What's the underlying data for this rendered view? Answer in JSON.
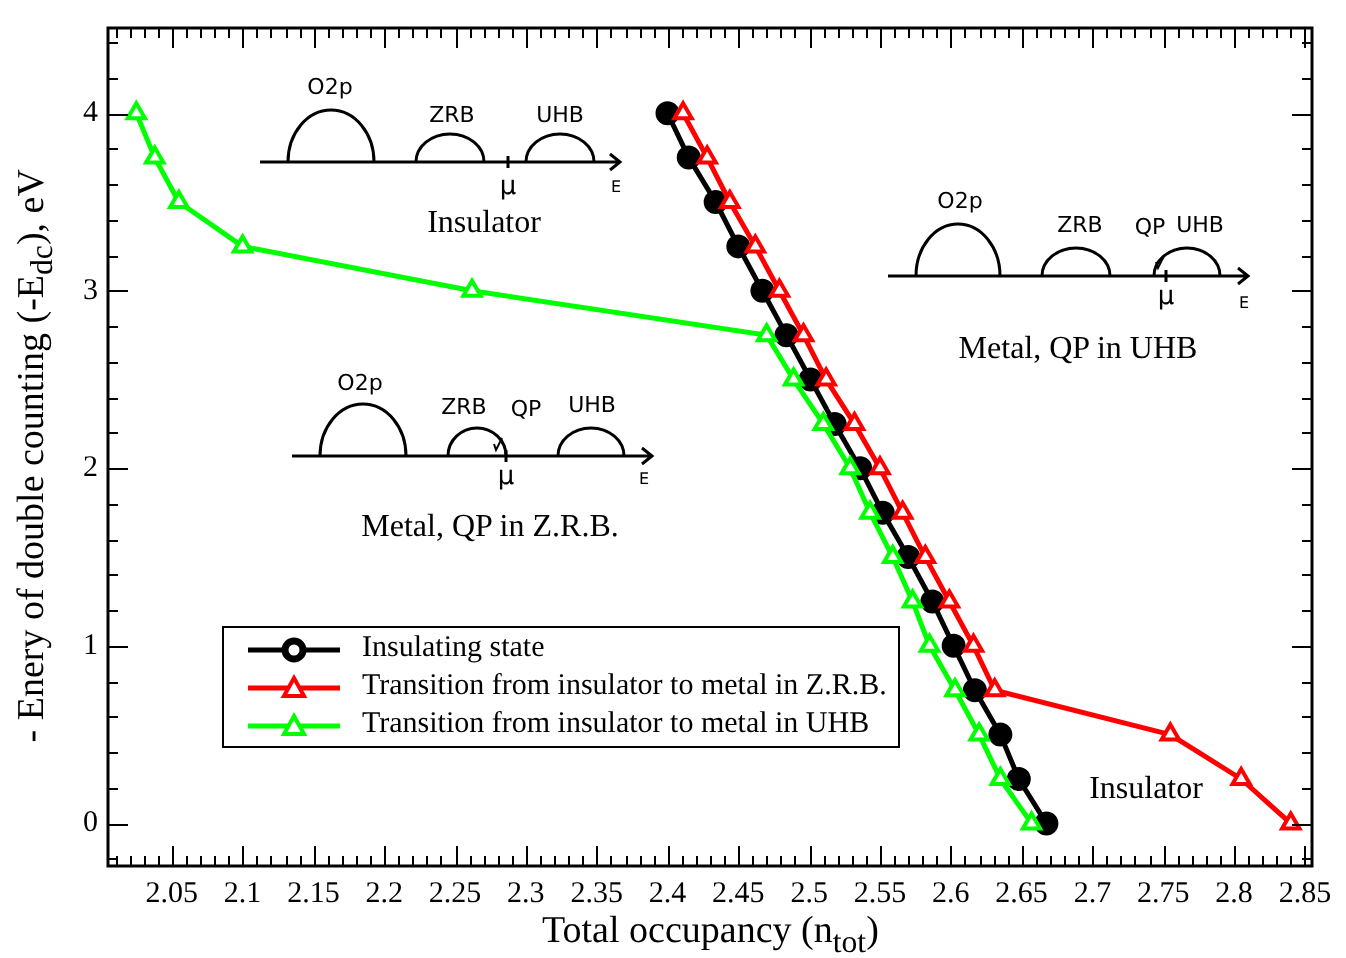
{
  "chart_data": {
    "type": "line",
    "xlabel": "Total occupancy (n$_{tot}$)",
    "ylabel": "- Enery of double counting (-E$_{dc}$), eV",
    "annotations": [
      "O2p",
      "ZRB",
      "UHB",
      "μ",
      "E",
      "Insulator",
      "O2p",
      "ZRB",
      "QP",
      "UHB",
      "μ",
      "E",
      "Metal, QP in UHB",
      "O2p",
      "ZRB",
      "QP",
      "UHB",
      "μ",
      "E",
      "Metal, QP in Z.R.B.",
      "Insulator"
    ],
    "xlim": [
      2.005,
      2.855
    ],
    "ylim": [
      -0.24,
      4.48
    ],
    "xticks": [
      {
        "value": 2.01,
        "label": null
      },
      {
        "value": 2.02,
        "label": null
      },
      {
        "value": 2.03,
        "label": null
      },
      {
        "value": 2.04,
        "label": null
      },
      2.05,
      {
        "value": 2.06,
        "label": null
      },
      {
        "value": 2.07,
        "label": null
      },
      {
        "value": 2.08,
        "label": null
      },
      {
        "value": 2.09,
        "label": null
      },
      2.1,
      {
        "value": 2.11,
        "label": null
      },
      {
        "value": 2.12,
        "label": null
      },
      {
        "value": 2.13,
        "label": null
      },
      {
        "value": 2.14,
        "label": null
      },
      2.15,
      {
        "value": 2.16,
        "label": null
      },
      {
        "value": 2.17,
        "label": null
      },
      {
        "value": 2.18,
        "label": null
      },
      {
        "value": 2.19,
        "label": null
      },
      2.2,
      {
        "value": 2.21,
        "label": null
      },
      {
        "value": 2.22,
        "label": null
      },
      {
        "value": 2.23,
        "label": null
      },
      {
        "value": 2.24,
        "label": null
      },
      2.25,
      {
        "value": 2.26,
        "label": null
      },
      {
        "value": 2.27,
        "label": null
      },
      {
        "value": 2.28,
        "label": null
      },
      {
        "value": 2.29,
        "label": null
      },
      2.3,
      {
        "value": 2.31,
        "label": null
      },
      {
        "value": 2.32,
        "label": null
      },
      {
        "value": 2.33,
        "label": null
      },
      {
        "value": 2.34,
        "label": null
      },
      2.35,
      {
        "value": 2.36,
        "label": null
      },
      {
        "value": 2.37,
        "label": null
      },
      {
        "value": 2.38,
        "label": null
      },
      {
        "value": 2.39,
        "label": null
      },
      2.4,
      {
        "value": 2.41,
        "label": null
      },
      {
        "value": 2.42,
        "label": null
      },
      {
        "value": 2.43,
        "label": null
      },
      {
        "value": 2.44,
        "label": null
      },
      2.45,
      {
        "value": 2.46,
        "label": null
      },
      {
        "value": 2.47,
        "label": null
      },
      {
        "value": 2.48,
        "label": null
      },
      {
        "value": 2.49,
        "label": null
      },
      2.5,
      {
        "value": 2.51,
        "label": null
      },
      {
        "value": 2.52,
        "label": null
      },
      {
        "value": 2.53,
        "label": null
      },
      {
        "value": 2.54,
        "label": null
      },
      2.55,
      {
        "value": 2.56,
        "label": null
      },
      {
        "value": 2.57,
        "label": null
      },
      {
        "value": 2.58,
        "label": null
      },
      {
        "value": 2.59,
        "label": null
      },
      2.6,
      {
        "value": 2.61,
        "label": null
      },
      {
        "value": 2.62,
        "label": null
      },
      {
        "value": 2.63,
        "label": null
      },
      {
        "value": 2.64,
        "label": null
      },
      2.65,
      {
        "value": 2.66,
        "label": null
      },
      {
        "value": 2.67,
        "label": null
      },
      {
        "value": 2.68,
        "label": null
      },
      {
        "value": 2.69,
        "label": null
      },
      2.7,
      {
        "value": 2.71,
        "label": null
      },
      {
        "value": 2.72,
        "label": null
      },
      {
        "value": 2.73,
        "label": null
      },
      {
        "value": 2.74,
        "label": null
      },
      2.75,
      {
        "value": 2.76,
        "label": null
      },
      {
        "value": 2.77,
        "label": null
      },
      {
        "value": 2.78,
        "label": null
      },
      {
        "value": 2.79,
        "label": null
      },
      2.8,
      {
        "value": 2.81,
        "label": null
      },
      {
        "value": 2.82,
        "label": null
      },
      {
        "value": 2.83,
        "label": null
      },
      {
        "value": 2.84,
        "label": null
      },
      2.85
    ],
    "yticks": [
      {
        "value": -0.2,
        "label": null
      },
      0,
      {
        "value": 0.2,
        "label": null
      },
      {
        "value": 0.4,
        "label": null
      },
      {
        "value": 0.6,
        "label": null
      },
      {
        "value": 0.8,
        "label": null
      },
      1,
      {
        "value": 1.2,
        "label": null
      },
      {
        "value": 1.4,
        "label": null
      },
      {
        "value": 1.6,
        "label": null
      },
      {
        "value": 1.8,
        "label": null
      },
      2,
      {
        "value": 2.2,
        "label": null
      },
      {
        "value": 2.4,
        "label": null
      },
      {
        "value": 2.6,
        "label": null
      },
      {
        "value": 2.8,
        "label": null
      },
      3,
      {
        "value": 3.2,
        "label": null
      },
      {
        "value": 3.4,
        "label": null
      },
      {
        "value": 3.6,
        "label": null
      },
      {
        "value": 3.8,
        "label": null
      },
      4,
      {
        "value": 4.2,
        "label": null
      },
      {
        "value": 4.4,
        "label": null
      }
    ],
    "grid": false,
    "legend": "bottom left",
    "line_style": "solid",
    "series": [
      {
        "name": "Insulating state",
        "color": "#000000",
        "marker": "circle",
        "x": [
          2.4,
          2.415,
          2.434,
          2.45,
          2.467,
          2.484,
          2.501,
          2.518,
          2.536,
          2.552,
          2.57,
          2.587,
          2.602,
          2.617,
          2.635,
          2.648,
          2.6675
        ],
        "values": [
          4,
          3.75,
          3.5,
          3.25,
          3,
          2.75,
          2.5,
          2.25,
          2,
          1.75,
          1.5,
          1.25,
          1,
          0.75,
          0.5,
          0.25,
          0
        ]
      },
      {
        "name": "Transition from insulator to metal in Z.R.B.",
        "color": "#ff0000",
        "marker": "triangle",
        "x": [
          2.411,
          2.428,
          2.444,
          2.462,
          2.479,
          2.496,
          2.512,
          2.532,
          2.55,
          2.566,
          2.582,
          2.599,
          2.616,
          2.631,
          2.755,
          2.805,
          2.84
        ],
        "values": [
          4,
          3.75,
          3.5,
          3.25,
          3,
          2.75,
          2.5,
          2.25,
          2,
          1.75,
          1.5,
          1.25,
          1,
          0.75,
          0.5,
          0.25,
          0
        ]
      },
      {
        "name": "Transition from insulator to metal in UHB",
        "color": "#00ff00",
        "marker": "triangle",
        "x": [
          2.025,
          2.038,
          2.055,
          2.1,
          2.262,
          2.47,
          2.489,
          2.51,
          2.529,
          2.543,
          2.559,
          2.573,
          2.585,
          2.603,
          2.62,
          2.635,
          2.657
        ],
        "values": [
          4,
          3.75,
          3.5,
          3.25,
          3,
          2.75,
          2.5,
          2.25,
          2,
          1.75,
          1.5,
          1.25,
          1,
          0.75,
          0.5,
          0.25,
          0
        ]
      }
    ]
  }
}
